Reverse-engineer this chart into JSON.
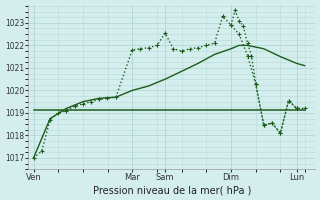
{
  "xlabel": "Pression niveau de la mer( hPa )",
  "background_color": "#d4eeee",
  "grid_color": "#b8dada",
  "line_color": "#1a5c1a",
  "ylim": [
    1016.5,
    1023.8
  ],
  "yticks": [
    1017,
    1018,
    1019,
    1020,
    1021,
    1022,
    1023
  ],
  "day_labels": [
    "Ven",
    "Mar",
    "Sam",
    "Dim",
    "Lun"
  ],
  "day_positions": [
    0.0,
    0.375,
    0.5,
    0.75,
    1.0
  ],
  "xlim": [
    -0.02,
    1.07
  ],
  "series1_x": [
    0.0,
    0.031,
    0.063,
    0.094,
    0.125,
    0.156,
    0.188,
    0.219,
    0.25,
    0.281,
    0.313,
    0.375,
    0.406,
    0.438,
    0.469,
    0.5,
    0.531,
    0.563,
    0.594,
    0.625,
    0.656,
    0.688,
    0.719,
    0.75,
    0.781,
    0.813,
    0.844,
    0.875,
    0.906,
    0.938,
    0.969,
    1.0
  ],
  "series1_y": [
    1017.0,
    1017.3,
    1018.7,
    1019.0,
    1019.1,
    1019.3,
    1019.4,
    1019.5,
    1019.6,
    1019.65,
    1019.7,
    1021.8,
    1021.85,
    1021.9,
    1022.0,
    1022.55,
    1021.85,
    1021.75,
    1021.85,
    1021.9,
    1022.0,
    1022.1,
    1023.3,
    1022.9,
    1022.5,
    1021.55,
    1020.3,
    1018.45,
    1018.55,
    1018.1,
    1019.55,
    1019.2
  ],
  "series2_x": [
    0.0,
    0.063,
    0.125,
    0.188,
    0.25,
    0.313,
    0.375,
    0.438,
    0.5,
    0.563,
    0.625,
    0.688,
    0.75,
    0.781,
    0.813,
    0.875,
    0.938,
    1.0,
    1.03
  ],
  "series2_y": [
    1017.0,
    1018.75,
    1019.2,
    1019.5,
    1019.65,
    1019.7,
    1020.0,
    1020.2,
    1020.5,
    1020.85,
    1021.2,
    1021.6,
    1021.85,
    1022.0,
    1022.0,
    1021.85,
    1021.5,
    1021.2,
    1021.1
  ],
  "series3_x": [
    0.0,
    0.06,
    0.125,
    0.188,
    0.25,
    0.313,
    0.375,
    0.438,
    0.5,
    0.563,
    0.625,
    0.688,
    0.75,
    0.813,
    0.875,
    0.938,
    1.0,
    1.03
  ],
  "series3_y": [
    1019.15,
    1019.15,
    1019.15,
    1019.15,
    1019.15,
    1019.15,
    1019.15,
    1019.15,
    1019.15,
    1019.15,
    1019.15,
    1019.15,
    1019.15,
    1019.15,
    1019.15,
    1019.15,
    1019.15,
    1019.15
  ],
  "series4_x": [
    0.75,
    0.766,
    0.781,
    0.797,
    0.813,
    0.828,
    0.844,
    0.875,
    0.906,
    0.938,
    0.969,
    1.0,
    1.03
  ],
  "series4_y": [
    1022.9,
    1023.55,
    1023.1,
    1022.85,
    1022.1,
    1021.55,
    1020.3,
    1018.45,
    1018.55,
    1018.1,
    1019.55,
    1019.2,
    1019.2
  ]
}
